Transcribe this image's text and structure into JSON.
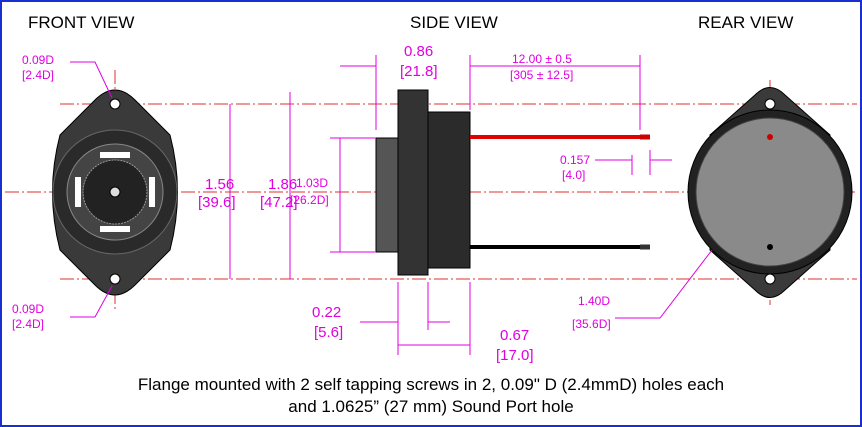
{
  "views": {
    "front": "FRONT VIEW",
    "side": "SIDE VIEW",
    "rear": "REAR VIEW"
  },
  "dimensions": {
    "front_hole_top": [
      "0.09D",
      "[2.4D]"
    ],
    "front_hole_bottom": [
      "0.09D",
      "[2.4D]"
    ],
    "hole_spacing": [
      "1.56",
      "[39.6]"
    ],
    "flange_height": [
      "1.86",
      "[47.2]"
    ],
    "port_diameter": [
      "1.03D",
      "[26.2D]"
    ],
    "body_depth": [
      "0.86",
      "[21.8]"
    ],
    "wire_length": [
      "12.00 ± 0.5",
      "[305 ± 12.5]"
    ],
    "wire_strip": [
      "0.157",
      "[4.0]"
    ],
    "flange_thickness": [
      "0.22",
      "[5.6]"
    ],
    "port_depth": [
      "0.67",
      "[17.0]"
    ],
    "body_diameter": [
      "1.40D",
      "[35.6D]"
    ]
  },
  "caption": [
    "Flange mounted with 2 self tapping screws in 2, 0.09\" D (2.4mmD) holes each",
    "and 1.0625” (27 mm) Sound Port hole"
  ]
}
